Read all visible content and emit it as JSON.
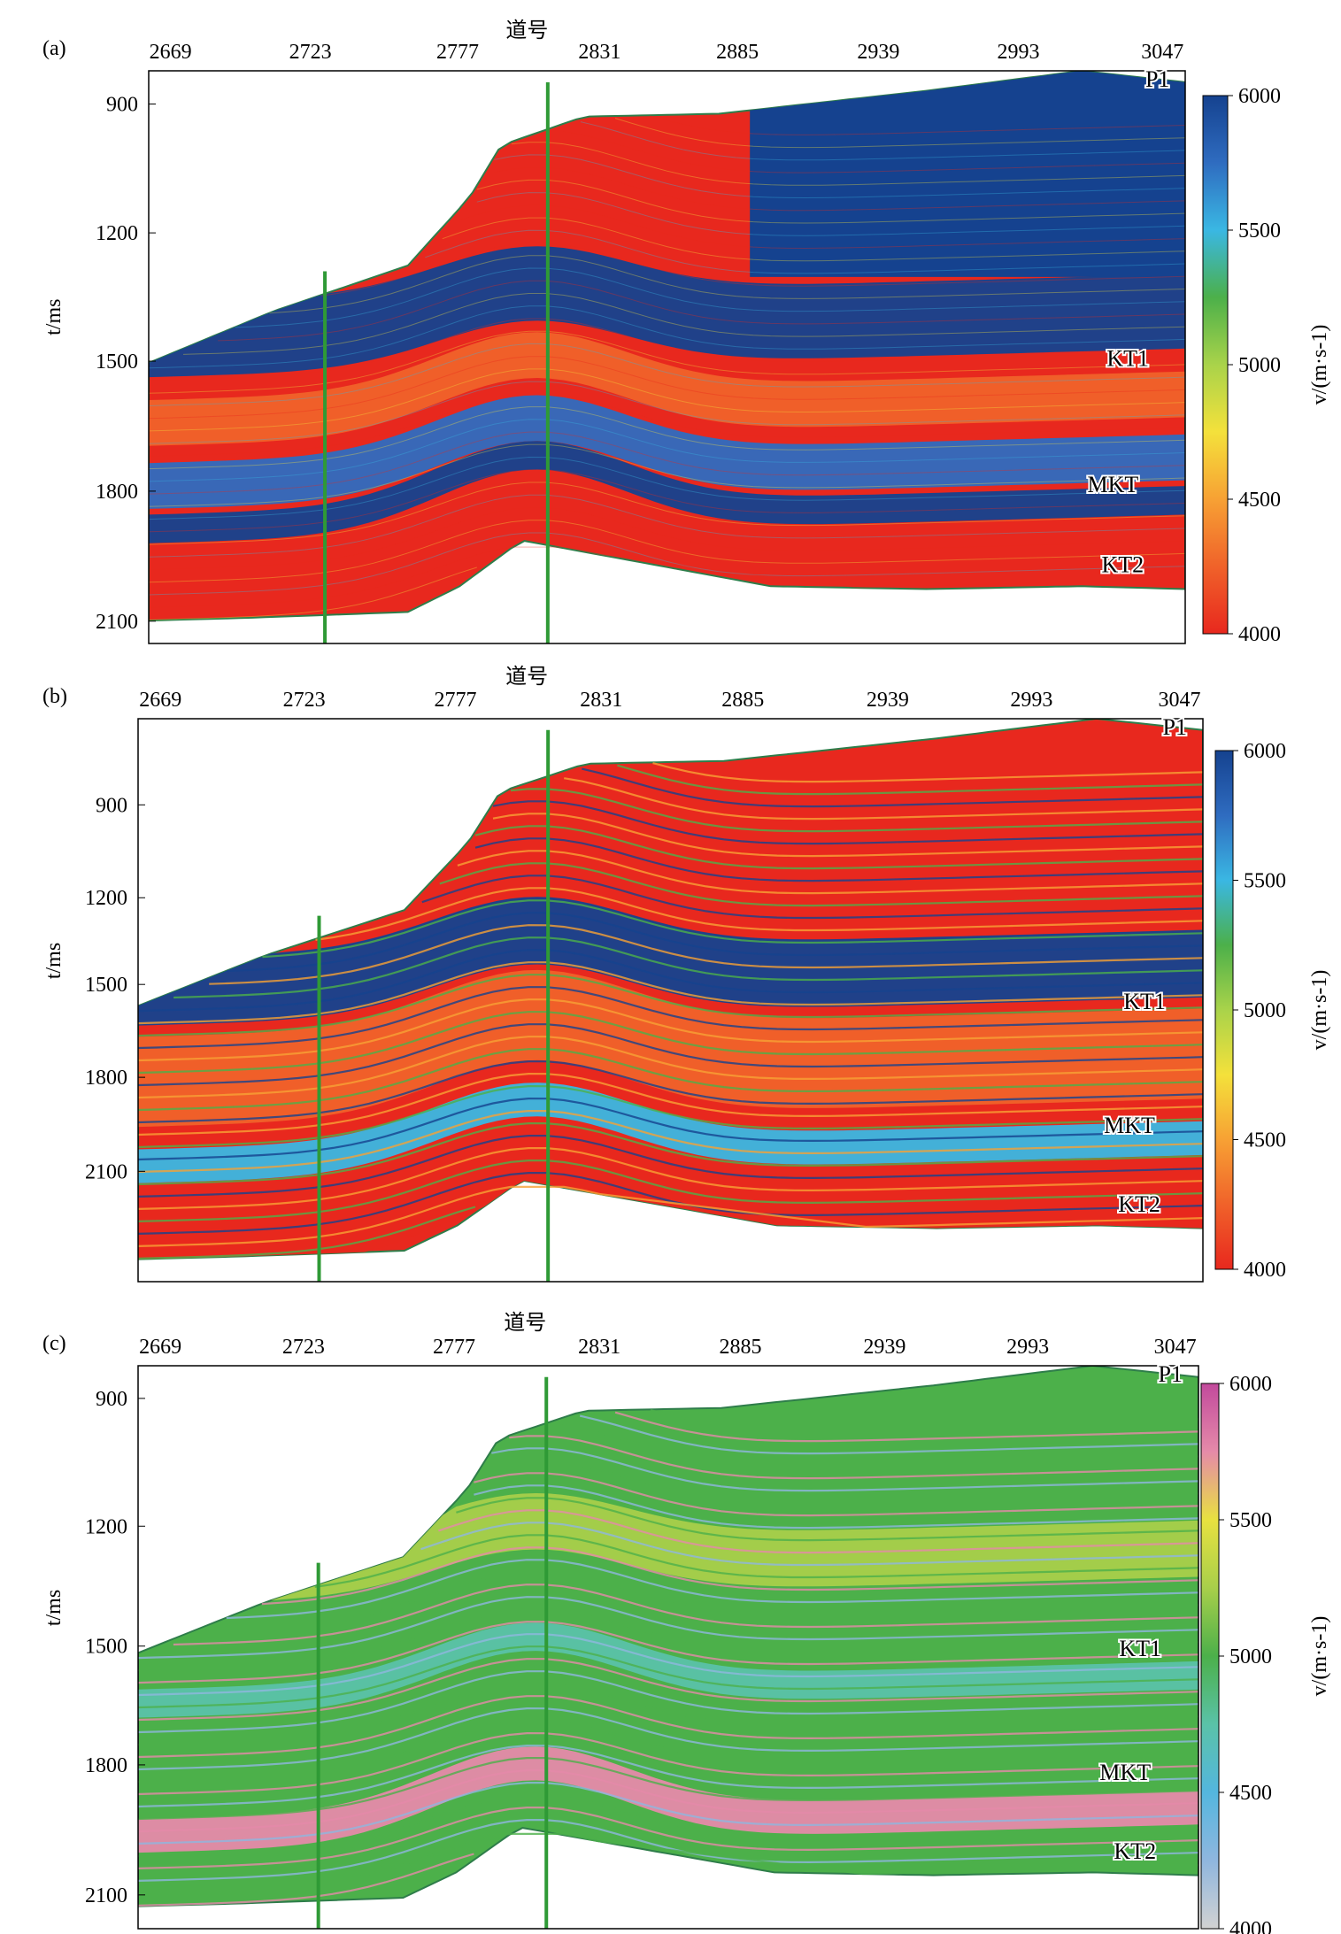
{
  "colors": {
    "rainbow_scale": [
      "#e8281e",
      "#f0622a",
      "#f7a134",
      "#f4e13b",
      "#a9d34a",
      "#4cb04a",
      "#3ab7e3",
      "#2f6cc0",
      "#15428f"
    ],
    "purple_scale": [
      "#d2d2d2",
      "#8fb6de",
      "#54b6de",
      "#5ac2a8",
      "#4cb04a",
      "#a8cf4a",
      "#e8e140",
      "#e58aa9",
      "#c24a9c"
    ],
    "well": "#2f9a36",
    "frame": "#000000"
  },
  "panels": [
    {
      "label": "(a)",
      "xlabel": "道号",
      "ylabel": "t/ms",
      "xticks": [
        "2669",
        "2723",
        "2777",
        "2831",
        "2885",
        "2939",
        "2993",
        "3047"
      ],
      "yticks": [
        "900",
        "1200",
        "1500",
        "1800",
        "2100"
      ],
      "horizons": [
        "P1",
        "KT1",
        "MKT",
        "KT2"
      ],
      "colorbar": {
        "ticks": [
          "6000",
          "5500",
          "5000",
          "4500",
          "4000"
        ],
        "label": "v/(m·s-1)",
        "scale": "rainbow_scale"
      }
    },
    {
      "label": "(b)",
      "xlabel": "道号",
      "ylabel": "t/ms",
      "xticks": [
        "2669",
        "2723",
        "2777",
        "2831",
        "2885",
        "2939",
        "2993",
        "3047"
      ],
      "yticks": [
        "900",
        "1200",
        "1500",
        "1800",
        "2100"
      ],
      "horizons": [
        "P1",
        "KT1",
        "MKT",
        "KT2"
      ],
      "colorbar": {
        "ticks": [
          "6000",
          "5500",
          "5000",
          "4500",
          "4000"
        ],
        "label": "v/(m·s-1)",
        "scale": "rainbow_scale"
      }
    },
    {
      "label": "(c)",
      "xlabel": "道号",
      "ylabel": "t/ms",
      "xticks": [
        "2669",
        "2723",
        "2777",
        "2831",
        "2885",
        "2939",
        "2993",
        "3047"
      ],
      "yticks": [
        "900",
        "1200",
        "1500",
        "1800",
        "2100"
      ],
      "horizons": [
        "P1",
        "KT1",
        "MKT",
        "KT2"
      ],
      "colorbar": {
        "ticks": [
          "6000",
          "5500",
          "5000",
          "4500",
          "4000"
        ],
        "label": "v/(m·s-1)",
        "scale": "purple_scale"
      }
    }
  ]
}
